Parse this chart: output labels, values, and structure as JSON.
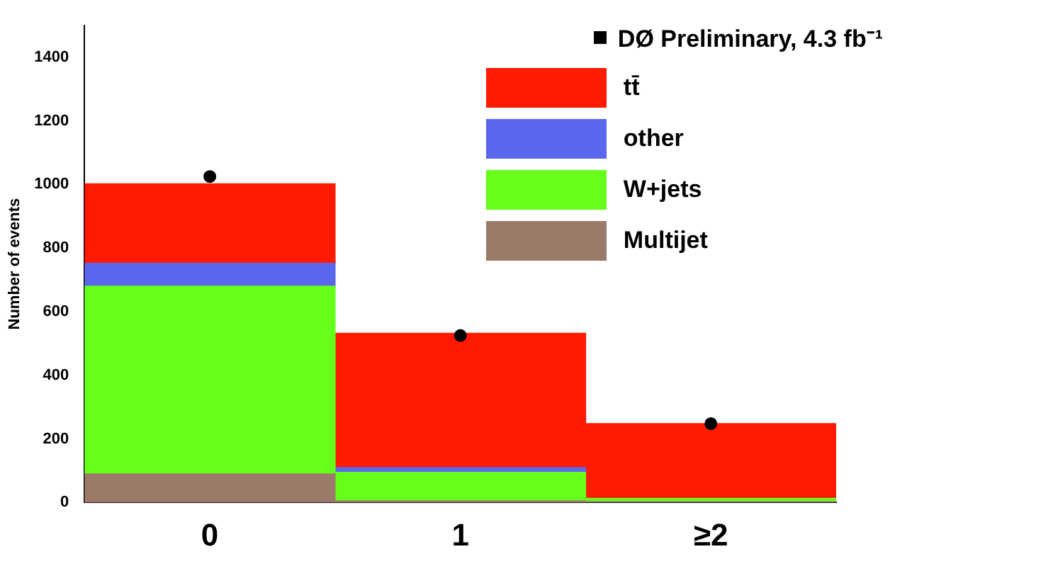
{
  "chart_data": {
    "type": "bar",
    "ylabel": "Number of events",
    "categories": [
      "0",
      "1",
      "≥2"
    ],
    "stacked": true,
    "series": [
      {
        "name": "Multijet",
        "color": "#9c7a6a",
        "values": [
          90,
          5,
          3
        ]
      },
      {
        "name": "W+jets",
        "color": "#66ff1a",
        "values": [
          590,
          90,
          10
        ]
      },
      {
        "name": "other",
        "color": "#5a66ee",
        "values": [
          72,
          15,
          null
        ]
      },
      {
        "name": "tt̄",
        "color": "#ff1a00",
        "values": [
          250,
          422,
          235
        ]
      },
      {
        "name": "DØ Preliminary, 4.3 fb⁻¹",
        "type": "scatter",
        "color": "#000000",
        "x": [
          "0",
          "1",
          "≥2"
        ],
        "values": [
          1025,
          525,
          248
        ]
      }
    ],
    "ylim": [
      0,
      1500
    ],
    "yticks": [
      0,
      200,
      400,
      600,
      800,
      1000,
      1200,
      1400
    ],
    "grid": false,
    "legend": "top right",
    "marker": "circle"
  }
}
